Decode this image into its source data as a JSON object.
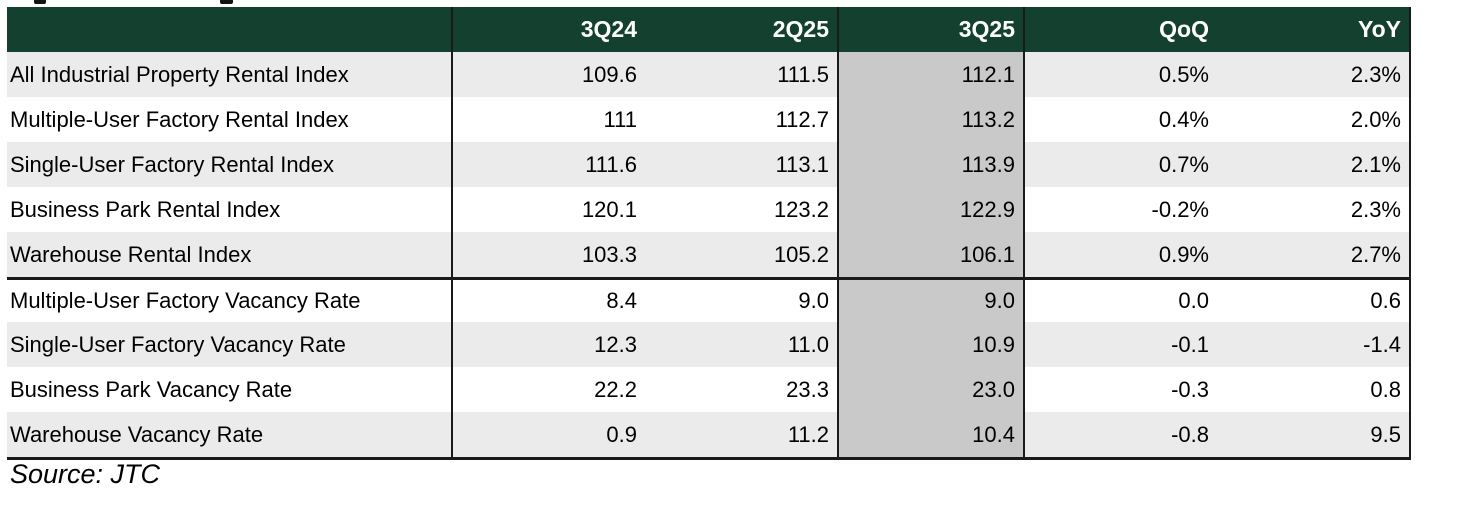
{
  "chart_data": {
    "type": "table",
    "columns": [
      "",
      "3Q24",
      "2Q25",
      "3Q25",
      "QoQ",
      "YoY"
    ],
    "highlighted_column": "3Q25",
    "sections": [
      {
        "rows": [
          {
            "label": "All Industrial Property Rental Index",
            "values": [
              "109.6",
              "111.5",
              "112.1",
              "0.5%",
              "2.3%"
            ]
          },
          {
            "label": "Multiple-User Factory Rental Index",
            "values": [
              "111",
              "112.7",
              "113.2",
              "0.4%",
              "2.0%"
            ]
          },
          {
            "label": "Single-User Factory Rental Index",
            "values": [
              "111.6",
              "113.1",
              "113.9",
              "0.7%",
              "2.1%"
            ]
          },
          {
            "label": "Business Park Rental Index",
            "values": [
              "120.1",
              "123.2",
              "122.9",
              "-0.2%",
              "2.3%"
            ]
          },
          {
            "label": "Warehouse Rental Index",
            "values": [
              "103.3",
              "105.2",
              "106.1",
              "0.9%",
              "2.7%"
            ]
          }
        ]
      },
      {
        "rows": [
          {
            "label": "Multiple-User Factory Vacancy Rate",
            "values": [
              "8.4",
              "9.0",
              "9.0",
              "0.0",
              "0.6"
            ]
          },
          {
            "label": "Single-User Factory Vacancy Rate",
            "values": [
              "12.3",
              "11.0",
              "10.9",
              "-0.1",
              "-1.4"
            ]
          },
          {
            "label": "Business Park Vacancy Rate",
            "values": [
              "22.2",
              "23.3",
              "23.0",
              "-0.3",
              "0.8"
            ]
          },
          {
            "label": "Warehouse Vacancy Rate",
            "values": [
              "0.9",
              "11.2",
              "10.4",
              "-0.8",
              "9.5"
            ]
          }
        ]
      }
    ]
  },
  "source": {
    "text": "Source: JTC"
  },
  "colors": {
    "header_bg": "#14412f",
    "header_text": "#ffffff",
    "stripe": "#ebebeb",
    "highlight_column_bg": "#c9c9c9",
    "border": "#1a1a1a"
  }
}
